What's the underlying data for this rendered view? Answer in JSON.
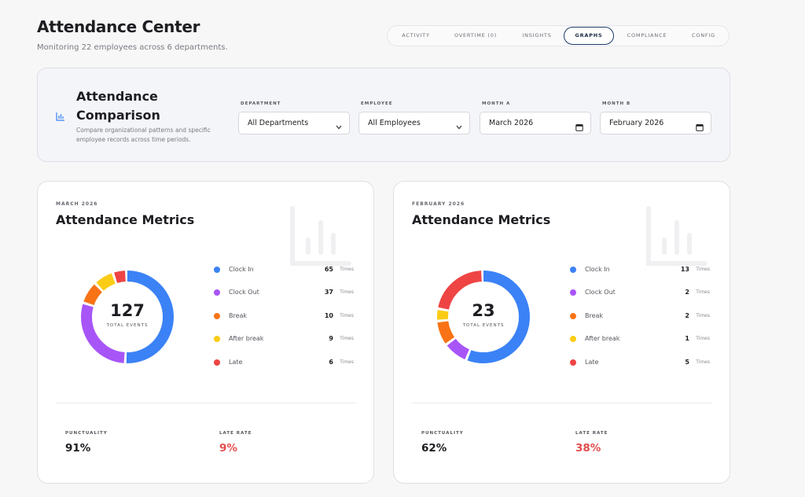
{
  "header": {
    "title": "Attendance Center",
    "subtitle": "Monitoring 22 employees across 6 departments."
  },
  "tabs": [
    {
      "label": "ACTIVITY",
      "active": false
    },
    {
      "label": "OVERTIME (0)",
      "active": false
    },
    {
      "label": "INSIGHTS",
      "active": false
    },
    {
      "label": "GRAPHS",
      "active": true
    },
    {
      "label": "COMPLIANCE",
      "active": false
    },
    {
      "label": "CONFIG",
      "active": false
    }
  ],
  "comparison": {
    "title": "Attendance Comparison",
    "description": "Compare organizational patterns and specific employee records across time periods.",
    "icon": "bar-chart-icon",
    "filters": {
      "department": {
        "label": "DEPARTMENT",
        "value": "All Departments",
        "icon": "chevron-down-icon"
      },
      "employee": {
        "label": "EMPLOYEE",
        "value": "All Employees",
        "icon": "chevron-down-icon"
      },
      "month_a": {
        "label": "MONTH A",
        "value": "March 2026",
        "icon": "calendar-icon"
      },
      "month_b": {
        "label": "MONTH B",
        "value": "February 2026",
        "icon": "calendar-icon"
      }
    }
  },
  "colors": {
    "clock_in": "#3b82f6",
    "clock_out": "#a855f7",
    "break": "#f97316",
    "after_break": "#facc15",
    "late": "#ef4444",
    "accent_dark": "#1f3b6b",
    "late_rate_text": "#e24c4c"
  },
  "cards": [
    {
      "month": "MARCH 2026",
      "title": "Attendance Metrics",
      "total": "127",
      "total_caption": "TOTAL EVENTS",
      "legend": [
        {
          "label": "Clock In",
          "count": "65",
          "unit": "Times"
        },
        {
          "label": "Clock Out",
          "count": "37",
          "unit": "Times"
        },
        {
          "label": "Break",
          "count": "10",
          "unit": "Times"
        },
        {
          "label": "After break",
          "count": "9",
          "unit": "Times"
        },
        {
          "label": "Late",
          "count": "6",
          "unit": "Times"
        }
      ],
      "punctuality_label": "PUNCTUALITY",
      "punctuality": "91%",
      "late_rate_label": "LATE RATE",
      "late_rate": "9%"
    },
    {
      "month": "FEBRUARY 2026",
      "title": "Attendance Metrics",
      "total": "23",
      "total_caption": "TOTAL EVENTS",
      "legend": [
        {
          "label": "Clock In",
          "count": "13",
          "unit": "Times"
        },
        {
          "label": "Clock Out",
          "count": "2",
          "unit": "Times"
        },
        {
          "label": "Break",
          "count": "2",
          "unit": "Times"
        },
        {
          "label": "After break",
          "count": "1",
          "unit": "Times"
        },
        {
          "label": "Late",
          "count": "5",
          "unit": "Times"
        }
      ],
      "punctuality_label": "PUNCTUALITY",
      "punctuality": "62%",
      "late_rate_label": "LATE RATE",
      "late_rate": "38%"
    }
  ]
}
